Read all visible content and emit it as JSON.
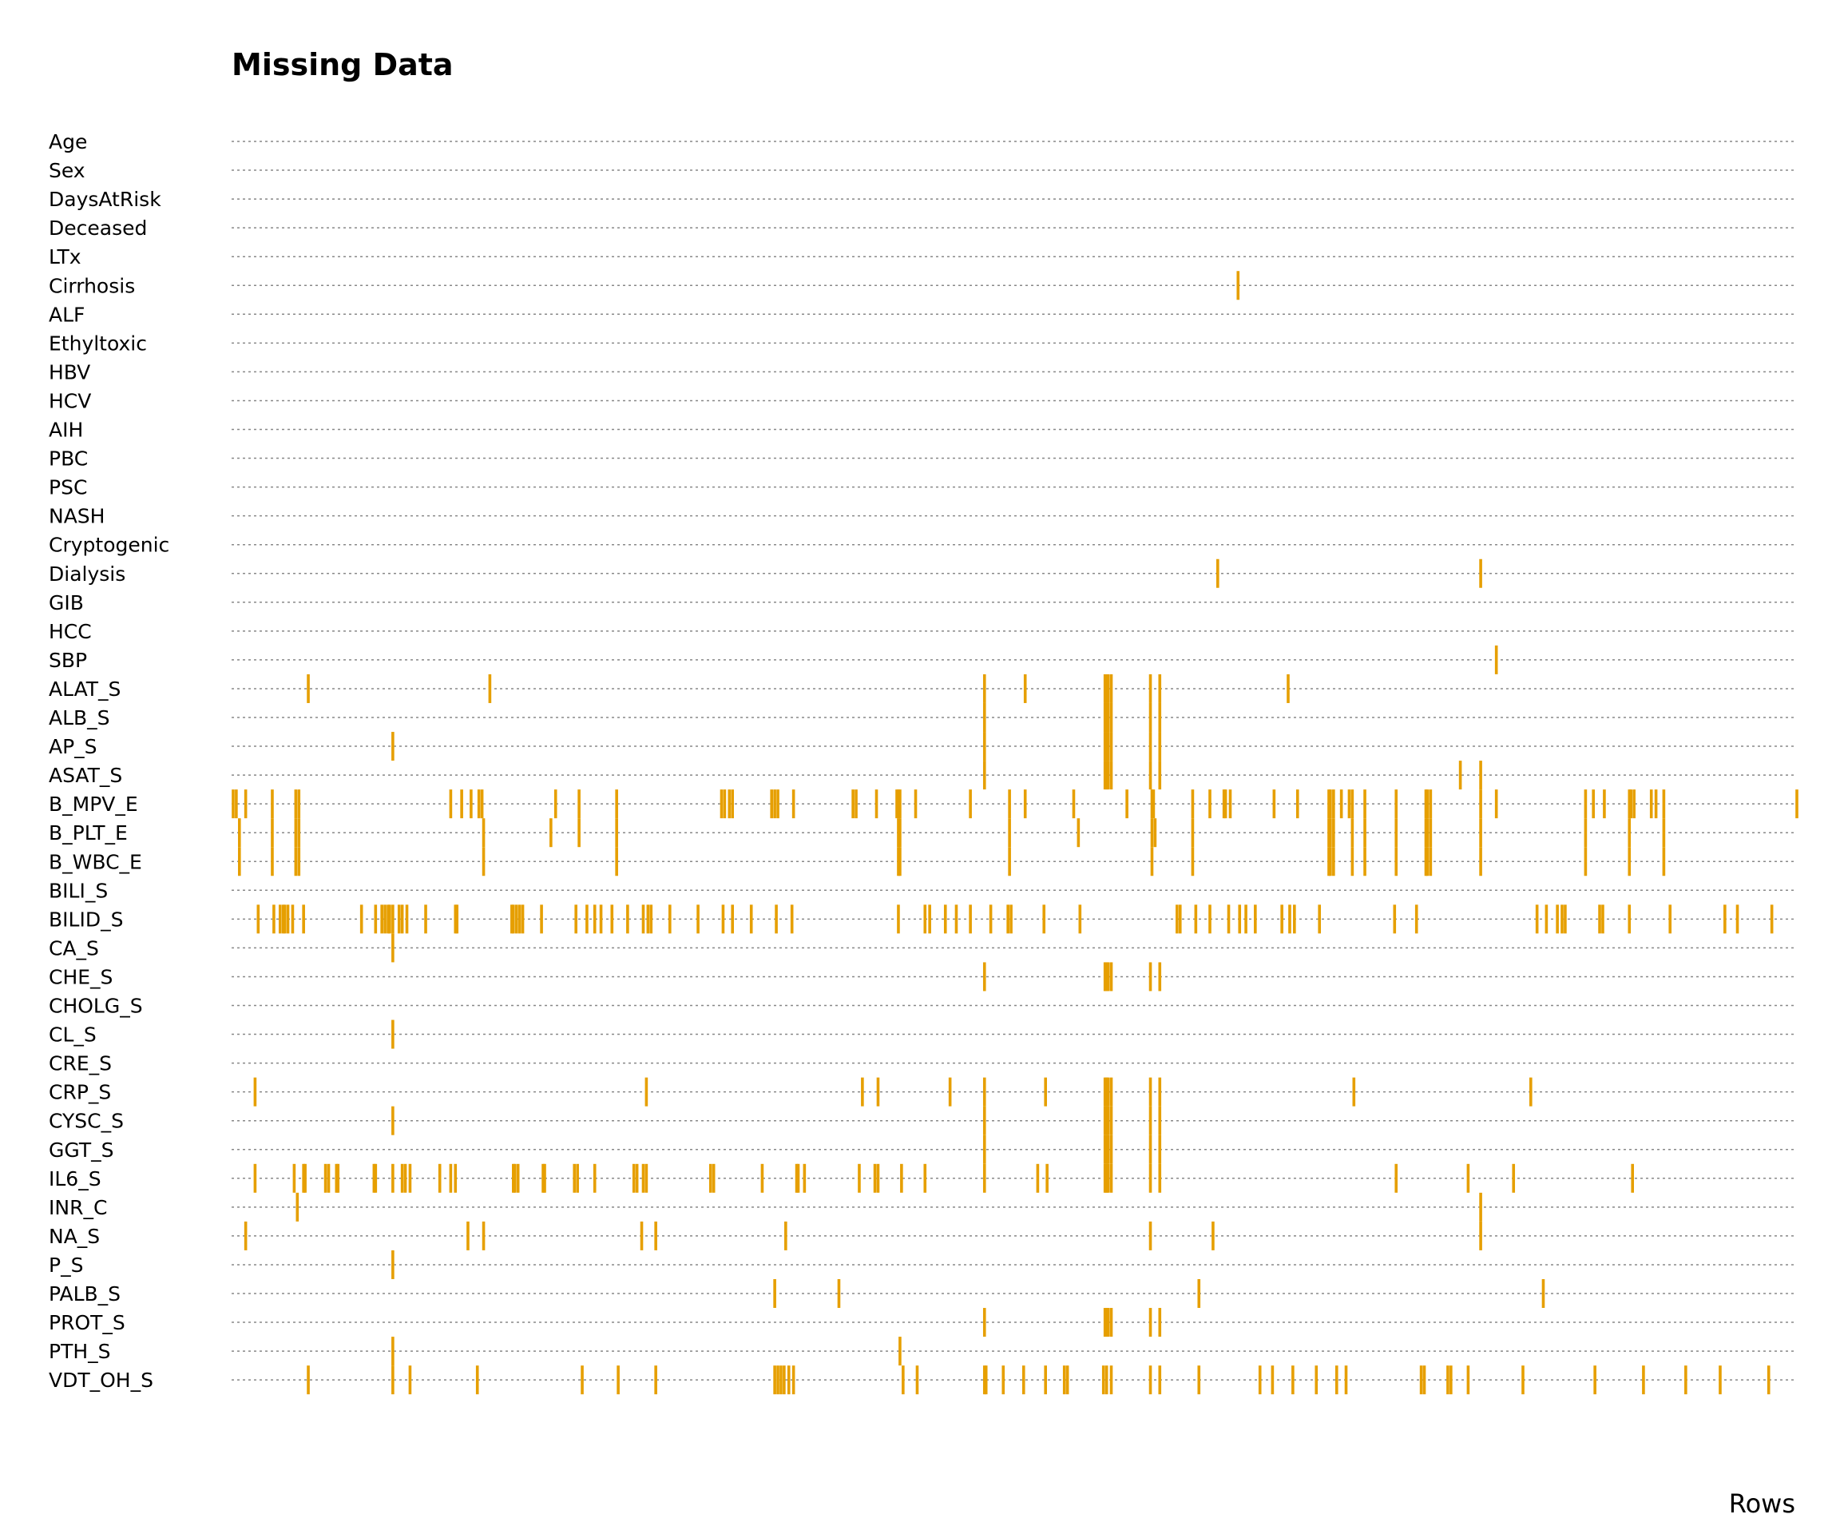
{
  "chart_data": {
    "type": "missingness-matrix",
    "title": "Missing Data",
    "xlabel": "Rows",
    "ylabel": "",
    "legend": "none",
    "grid": false,
    "marker_color": "#E69F00",
    "gridline_color": "#888888",
    "xlim": [
      0,
      1000
    ],
    "variables": [
      "Age",
      "Sex",
      "DaysAtRisk",
      "Deceased",
      "LTx",
      "Cirrhosis",
      "ALF",
      "Ethyltoxic",
      "HBV",
      "HCV",
      "AIH",
      "PBC",
      "PSC",
      "NASH",
      "Cryptogenic",
      "Dialysis",
      "GIB",
      "HCC",
      "SBP",
      "ALAT_S",
      "ALB_S",
      "AP_S",
      "ASAT_S",
      "B_MPV_E",
      "B_PLT_E",
      "B_WBC_E",
      "BILI_S",
      "BILID_S",
      "CA_S",
      "CHE_S",
      "CHOLG_S",
      "CL_S",
      "CRE_S",
      "CRP_S",
      "CYSC_S",
      "GGT_S",
      "IL6_S",
      "INR_C",
      "NA_S",
      "P_S",
      "PALB_S",
      "PROT_S",
      "PTH_S",
      "VDT_OH_S"
    ],
    "missing_rows": {
      "Age": [],
      "Sex": [],
      "DaysAtRisk": [],
      "Deceased": [],
      "LTx": [],
      "Cirrhosis": [
        643
      ],
      "ALF": [],
      "Ethyltoxic": [],
      "HBV": [],
      "HCV": [],
      "AIH": [],
      "PBC": [],
      "PSC": [],
      "NASH": [],
      "Cryptogenic": [],
      "Dialysis": [
        630,
        798
      ],
      "GIB": [],
      "HCC": [],
      "SBP": [
        808
      ],
      "ALAT_S": [
        49,
        165,
        481,
        507,
        558,
        559,
        560,
        562,
        587,
        593,
        675
      ],
      "ALB_S": [
        481,
        558,
        559,
        560,
        562,
        587,
        593
      ],
      "AP_S": [
        103,
        481,
        558,
        559,
        560,
        562,
        587,
        593
      ],
      "ASAT_S": [
        481,
        558,
        559,
        560,
        562,
        587,
        593,
        785,
        798
      ],
      "B_MPV_E": [
        1,
        3,
        9,
        26,
        41,
        43,
        140,
        147,
        153,
        158,
        160,
        207,
        222,
        246,
        313,
        315,
        318,
        320,
        345,
        347,
        349,
        359,
        397,
        399,
        412,
        425,
        426,
        427,
        437,
        472,
        497,
        507,
        538,
        572,
        588,
        589,
        614,
        625,
        634,
        635,
        638,
        666,
        681,
        701,
        702,
        704,
        709,
        714,
        716,
        724,
        744,
        763,
        764,
        766,
        798,
        808,
        865,
        870,
        877,
        893,
        894,
        896,
        907,
        910,
        915,
        1000
      ],
      "B_PLT_E": [
        5,
        26,
        41,
        43,
        161,
        204,
        222,
        246,
        426,
        427,
        497,
        541,
        590,
        588,
        614,
        701,
        702,
        704,
        716,
        724,
        744,
        763,
        764,
        766,
        798,
        865,
        893,
        915
      ],
      "B_WBC_E": [
        5,
        26,
        41,
        43,
        161,
        246,
        426,
        427,
        497,
        588,
        614,
        701,
        702,
        704,
        716,
        724,
        744,
        763,
        764,
        766,
        798,
        865,
        893,
        915
      ],
      "BILI_S": [],
      "BILID_S": [
        17,
        27,
        31,
        33,
        34,
        36,
        39,
        46,
        83,
        92,
        96,
        98,
        100,
        101,
        103,
        107,
        109,
        112,
        124,
        143,
        144,
        179,
        180,
        182,
        184,
        186,
        198,
        220,
        227,
        232,
        236,
        243,
        253,
        263,
        266,
        268,
        280,
        298,
        314,
        320,
        332,
        348,
        358,
        426,
        443,
        446,
        456,
        463,
        472,
        485,
        496,
        498,
        519,
        542,
        604,
        606,
        616,
        625,
        637,
        644,
        648,
        654,
        671,
        676,
        679,
        695,
        743,
        757,
        834,
        840,
        847,
        850,
        852,
        874,
        876,
        893,
        919,
        954,
        962,
        984
      ],
      "CA_S": [
        103
      ],
      "CHE_S": [
        481,
        558,
        559,
        560,
        562,
        587,
        593
      ],
      "CHOLG_S": [],
      "CL_S": [
        103
      ],
      "CRE_S": [],
      "CRP_S": [
        15,
        265,
        403,
        413,
        459,
        481,
        520,
        558,
        559,
        560,
        562,
        587,
        593,
        717,
        830
      ],
      "CYSC_S": [
        103,
        481,
        558,
        559,
        560,
        562,
        587,
        593
      ],
      "GGT_S": [
        481,
        558,
        559,
        560,
        562,
        587,
        593
      ],
      "IL6_S": [
        15,
        40,
        46,
        47,
        60,
        62,
        67,
        68,
        91,
        92,
        103,
        109,
        111,
        114,
        133,
        140,
        143,
        180,
        181,
        183,
        199,
        200,
        219,
        221,
        232,
        257,
        259,
        263,
        265,
        306,
        308,
        339,
        361,
        362,
        366,
        401,
        411,
        413,
        428,
        443,
        481,
        515,
        521,
        558,
        559,
        560,
        562,
        587,
        593,
        744,
        790,
        819,
        895
      ],
      "INR_C": [
        42,
        798
      ],
      "NA_S": [
        9,
        151,
        161,
        262,
        271,
        354,
        587,
        627,
        798
      ],
      "P_S": [
        103
      ],
      "PALB_S": [
        347,
        388,
        618,
        838
      ],
      "PROT_S": [
        481,
        558,
        559,
        560,
        562,
        587,
        593
      ],
      "PTH_S": [
        103,
        427
      ],
      "VDT_OH_S": [
        49,
        103,
        114,
        157,
        224,
        247,
        271,
        347,
        349,
        351,
        353,
        356,
        359,
        429,
        438,
        481,
        482,
        493,
        506,
        520,
        532,
        534,
        557,
        559,
        562,
        587,
        593,
        618,
        657,
        665,
        678,
        693,
        706,
        712,
        760,
        762,
        777,
        779,
        790,
        825,
        871,
        902,
        929,
        951,
        982
      ]
    }
  }
}
